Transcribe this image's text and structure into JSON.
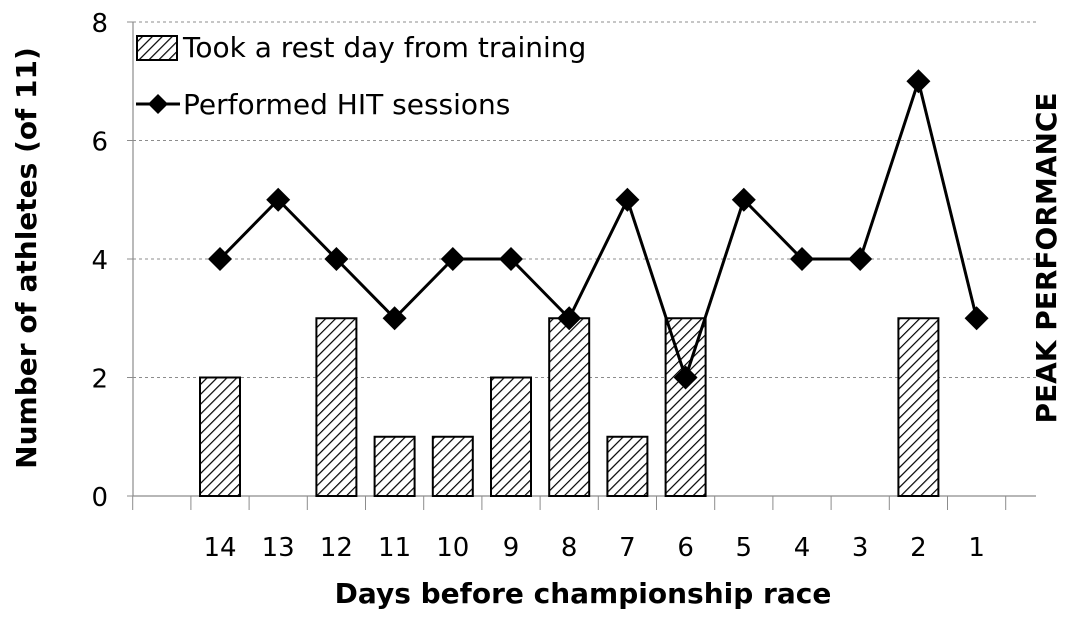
{
  "chart_data": {
    "type": "bar",
    "xlabel": "Days before championship race",
    "ylabel": "Number of athletes (of 11)",
    "ylim": [
      0,
      8
    ],
    "yticks": [
      "0",
      "2",
      "4",
      "6",
      "8"
    ],
    "categories": [
      "14",
      "13",
      "12",
      "11",
      "10",
      "9",
      "8",
      "7",
      "6",
      "5",
      "4",
      "3",
      "2",
      "1"
    ],
    "grid": "horizontal dashed",
    "legend_position": "top-left",
    "series": [
      {
        "name": "Took a rest day from training",
        "type": "bar",
        "values": [
          2,
          0,
          3,
          1,
          1,
          2,
          3,
          1,
          3,
          0,
          0,
          0,
          3,
          0
        ]
      },
      {
        "name": "Performed HIT sessions",
        "type": "line",
        "values": [
          4,
          5,
          4,
          3,
          4,
          4,
          3,
          5,
          2,
          5,
          4,
          4,
          7,
          3
        ]
      }
    ],
    "annotation": "PEAK PERFORMANCE"
  }
}
